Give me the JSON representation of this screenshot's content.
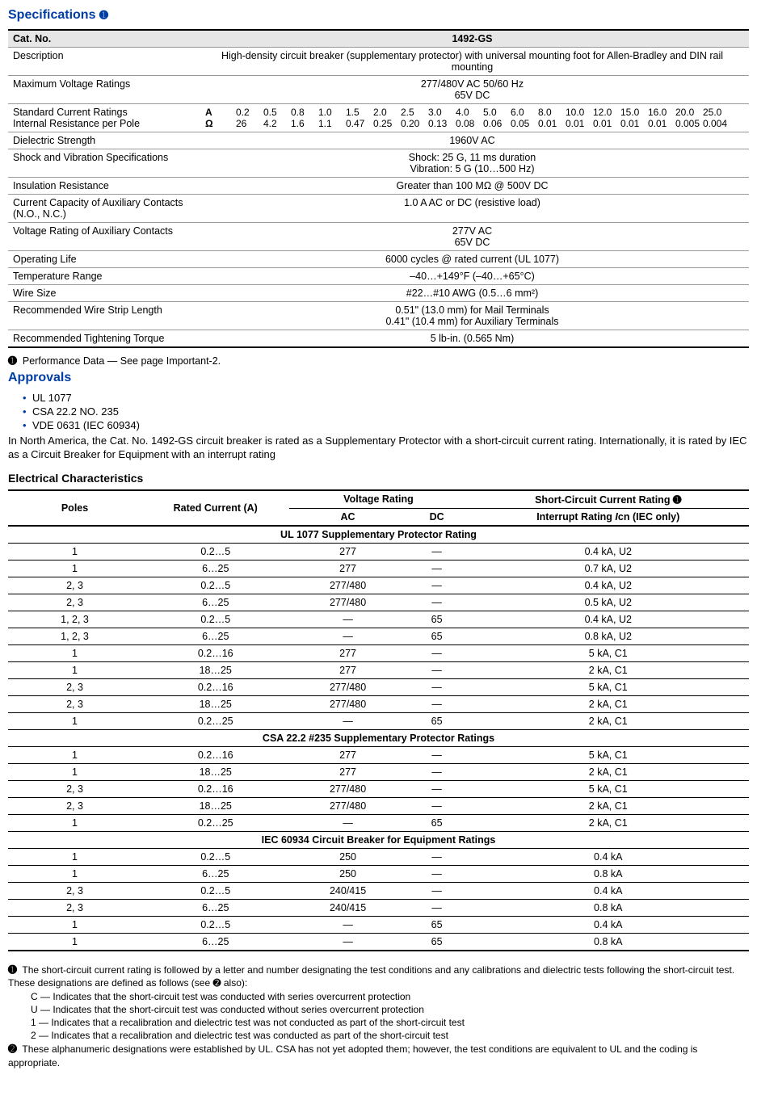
{
  "title": "Specifications",
  "circled1": "➊",
  "circled2": "➋",
  "specTable": {
    "header": {
      "catno_label": "Cat. No.",
      "catno_value": "1492-GS"
    },
    "rows": {
      "description": {
        "label": "Description",
        "value": "High-density circuit breaker (supplementary protector) with universal mounting foot for Allen-Bradley and DIN rail mounting"
      },
      "maxVoltage": {
        "label": "Maximum Voltage Ratings",
        "value1": "277/480V AC 50/60 Hz",
        "value2": "65V DC"
      },
      "currentRatings": {
        "label1": "Standard Current Ratings",
        "label2": "Internal Resistance per Pole",
        "unit1": "A",
        "unit2": "Ω",
        "amps": [
          "0.2",
          "0.5",
          "0.8",
          "1.0",
          "1.5",
          "2.0",
          "2.5",
          "3.0",
          "4.0",
          "5.0",
          "6.0",
          "8.0",
          "10.0",
          "12.0",
          "15.0",
          "16.0",
          "20.0",
          "25.0"
        ],
        "ohms": [
          "26",
          "4.2",
          "1.6",
          "1.1",
          "0.47",
          "0.25",
          "0.20",
          "0.13",
          "0.08",
          "0.06",
          "0.05",
          "0.01",
          "0.01",
          "0.01",
          "0.01",
          "0.01",
          "0.005",
          "0.004"
        ]
      },
      "dielectric": {
        "label": "Dielectric Strength",
        "value": "1960V AC"
      },
      "shock": {
        "label": "Shock and Vibration Specifications",
        "value1": "Shock: 25 G, 11 ms duration",
        "value2": "Vibration: 5 G (10…500 Hz)"
      },
      "insulation": {
        "label": "Insulation Resistance",
        "value": "Greater than 100 MΩ @ 500V DC"
      },
      "auxCurrent": {
        "label": "Current Capacity of Auxiliary Contacts (N.O., N.C.)",
        "value": "1.0 A AC or DC (resistive load)"
      },
      "auxVoltage": {
        "label": "Voltage Rating of Auxiliary Contacts",
        "value1": "277V AC",
        "value2": "65V DC"
      },
      "opLife": {
        "label": "Operating Life",
        "value": "6000 cycles @ rated current (UL 1077)"
      },
      "temp": {
        "label": "Temperature Range",
        "value": "–40…+149°F (–40…+65°C)"
      },
      "wire": {
        "label": "Wire Size",
        "value": "#22…#10 AWG (0.5…6 mm²)"
      },
      "strip": {
        "label": "Recommended Wire Strip Length",
        "value1": "0.51\" (13.0 mm) for Mail Terminals",
        "value2": "0.41\" (10.4 mm) for Auxiliary Terminals"
      },
      "torque": {
        "label": "Recommended Tightening Torque",
        "value": "5 lb-in. (0.565 Nm)"
      }
    }
  },
  "perfNote": "Performance Data — See page Important-2.",
  "approvalsTitle": "Approvals",
  "approvals": [
    "UL 1077",
    "CSA 22.2 NO. 235",
    "VDE 0631 (IEC 60934)"
  ],
  "approvalsBody": "In North America, the Cat. No. 1492-GS circuit breaker is rated as a Supplementary Protector with a short-circuit current rating. Internationally, it is rated by IEC as a Circuit Breaker for Equipment with an interrupt rating",
  "elecTitle": "Electrical Characteristics",
  "elecHeader": {
    "poles": "Poles",
    "rated": "Rated Current (A)",
    "voltage": "Voltage Rating",
    "ac": "AC",
    "dc": "DC",
    "short1": "Short-Circuit Current Rating ➊",
    "short2_pre": "Interrupt Rating ",
    "short2_i": "I",
    "short2_post": "cn (IEC only)"
  },
  "elecSections": [
    {
      "title": "UL 1077 Supplementary Protector Rating",
      "rows": [
        [
          "1",
          "0.2…5",
          "277",
          "—",
          "0.4 kA, U2"
        ],
        [
          "1",
          "6…25",
          "277",
          "—",
          "0.7 kA, U2"
        ],
        [
          "2, 3",
          "0.2…5",
          "277/480",
          "—",
          "0.4 kA, U2"
        ],
        [
          "2, 3",
          "6…25",
          "277/480",
          "—",
          "0.5 kA, U2"
        ],
        [
          "1, 2, 3",
          "0.2…5",
          "—",
          "65",
          "0.4 kA, U2"
        ],
        [
          "1, 2, 3",
          "6…25",
          "—",
          "65",
          "0.8 kA, U2"
        ],
        [
          "1",
          "0.2…16",
          "277",
          "—",
          "5 kA, C1"
        ],
        [
          "1",
          "18…25",
          "277",
          "—",
          "2 kA, C1"
        ],
        [
          "2, 3",
          "0.2…16",
          "277/480",
          "—",
          "5 kA, C1"
        ],
        [
          "2, 3",
          "18…25",
          "277/480",
          "—",
          "2 kA, C1"
        ],
        [
          "1",
          "0.2…25",
          "—",
          "65",
          "2 kA, C1"
        ]
      ]
    },
    {
      "title": "CSA 22.2 #235 Supplementary Protector Ratings",
      "rows": [
        [
          "1",
          "0.2…16",
          "277",
          "—",
          "5 kA, C1"
        ],
        [
          "1",
          "18…25",
          "277",
          "—",
          "2 kA, C1"
        ],
        [
          "2, 3",
          "0.2…16",
          "277/480",
          "—",
          "5 kA, C1"
        ],
        [
          "2, 3",
          "18…25",
          "277/480",
          "—",
          "2 kA, C1"
        ],
        [
          "1",
          "0.2…25",
          "—",
          "65",
          "2 kA, C1"
        ]
      ]
    },
    {
      "title": "IEC 60934 Circuit Breaker for Equipment Ratings",
      "rows": [
        [
          "1",
          "0.2…5",
          "250",
          "—",
          "0.4 kA"
        ],
        [
          "1",
          "6…25",
          "250",
          "—",
          "0.8 kA"
        ],
        [
          "2, 3",
          "0.2…5",
          "240/415",
          "—",
          "0.4 kA"
        ],
        [
          "2, 3",
          "6…25",
          "240/415",
          "—",
          "0.8 kA"
        ],
        [
          "1",
          "0.2…5",
          "—",
          "65",
          "0.4 kA"
        ],
        [
          "1",
          "6…25",
          "—",
          "65",
          "0.8 kA"
        ]
      ]
    }
  ],
  "notes": {
    "n1_lead": "The short-circuit current rating is followed by a letter and number designating the test conditions and any calibrations and dielectric tests following the short-circuit test. These designations are defined as follows (see ➋ also):",
    "n1_items": [
      "C — Indicates that the short-circuit test was conducted with series overcurrent protection",
      "U — Indicates that the short-circuit test was conducted without series overcurrent protection",
      "1 — Indicates that a recalibration and dielectric test was not conducted as part of the short-circuit test",
      "2 — Indicates that a recalibration and dielectric test was conducted as part of the short-circuit test"
    ],
    "n2": "These alphanumeric designations were established by UL. CSA has not yet adopted them; however, the test conditions are equivalent to UL and the coding is appropriate."
  }
}
